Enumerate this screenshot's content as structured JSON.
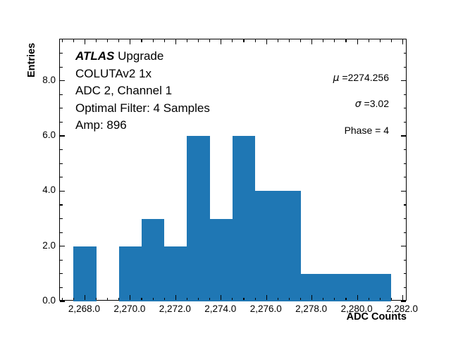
{
  "annotations": {
    "experiment_bold_italic": "ATLAS",
    "experiment_suffix": " Upgrade",
    "lines": [
      "COLUTAv2 1x",
      "ADC 2, Channel 1",
      "Optimal Filter: 4 Samples",
      "Amp: 896"
    ]
  },
  "stats": {
    "mu_symbol": "μ",
    "mu_text": " =2274.256",
    "sigma_symbol": "σ",
    "sigma_text": " =3.02",
    "phase_text": "Phase = 4"
  },
  "chart_data": {
    "type": "bar",
    "subtype": "histogram",
    "title": "",
    "xlabel": "ADC Counts",
    "ylabel": "Entries",
    "bar_color": "#1f77b4",
    "bin_width": 1.0,
    "bin_centers": [
      2268,
      2269,
      2270,
      2271,
      2272,
      2273,
      2274,
      2275,
      2276,
      2277,
      2278,
      2279,
      2280,
      2281
    ],
    "counts": [
      2,
      0,
      2,
      3,
      2,
      6,
      3,
      6,
      4,
      4,
      1,
      1,
      1,
      1
    ],
    "total_entries": 36,
    "xlim": [
      2266.9,
      2282.2
    ],
    "ylim": [
      0,
      9.5
    ],
    "x_major_ticks": [
      2268,
      2270,
      2272,
      2274,
      2276,
      2278,
      2280,
      2282
    ],
    "x_major_tick_labels": [
      "2,268.0",
      "2,270.0",
      "2,272.0",
      "2,274.0",
      "2,276.0",
      "2,278.0",
      "2,280.0",
      "2,282.0"
    ],
    "x_minor_step": 0.5,
    "y_major_ticks": [
      0,
      2,
      4,
      6,
      8
    ],
    "y_major_tick_labels": [
      "0.0",
      "2.0",
      "4.0",
      "6.0",
      "8.0"
    ],
    "y_minor_step": 0.5,
    "grid": false,
    "legend_position": "none",
    "stats_shown": {
      "mu": 2274.256,
      "sigma": 3.02,
      "phase": 4
    }
  }
}
